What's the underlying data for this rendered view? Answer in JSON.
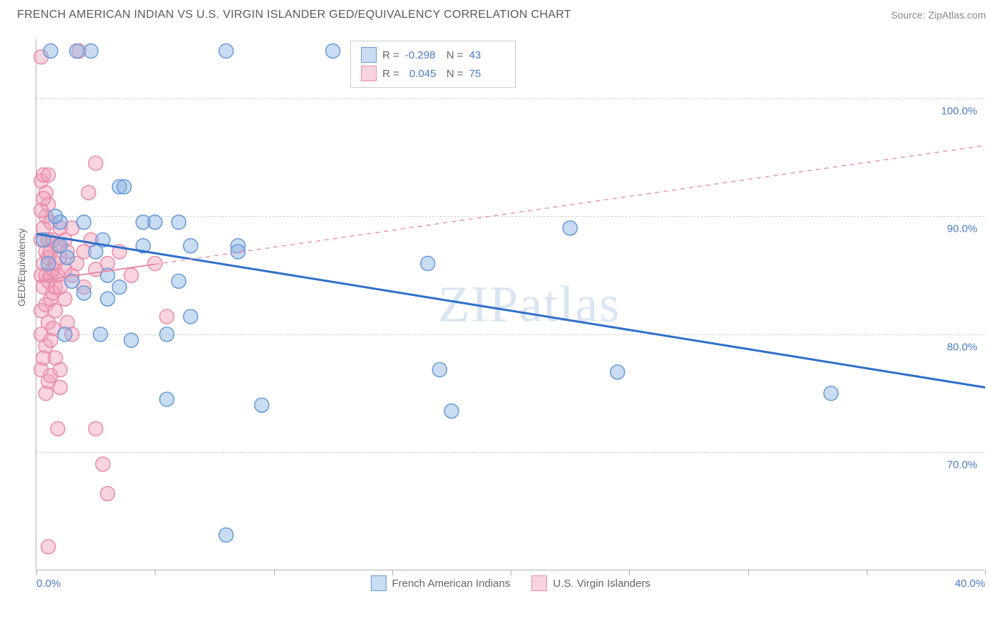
{
  "header": {
    "title": "FRENCH AMERICAN INDIAN VS U.S. VIRGIN ISLANDER GED/EQUIVALENCY CORRELATION CHART",
    "source": "Source: ZipAtlas.com"
  },
  "watermark": "ZIPatlas",
  "chart": {
    "type": "scatter",
    "y_label": "GED/Equivalency",
    "xlim": [
      0,
      40
    ],
    "ylim": [
      60,
      105
    ],
    "x_ticks": [
      0,
      5,
      10,
      15,
      20,
      25,
      30,
      35,
      40
    ],
    "x_tick_labels": {
      "0": "0.0%",
      "40": "40.0%"
    },
    "y_ticks": [
      70,
      80,
      90,
      100
    ],
    "y_tick_labels": [
      "70.0%",
      "80.0%",
      "90.0%",
      "100.0%"
    ],
    "grid_color": "#d0d0d0",
    "background_color": "#ffffff",
    "marker_radius": 10,
    "marker_stroke_width": 1.5,
    "series": [
      {
        "name": "French American Indians",
        "color_fill": "rgba(137, 178, 226, 0.45)",
        "color_stroke": "#6699d8",
        "R": "-0.298",
        "N": "43",
        "trend": {
          "x1": 0,
          "y1": 88.5,
          "x2": 40,
          "y2": 75.5,
          "solid_until_x": 40,
          "color": "#2f6fc9",
          "width": 3
        },
        "points": [
          [
            0.3,
            88
          ],
          [
            0.5,
            86
          ],
          [
            0.6,
            104
          ],
          [
            1.0,
            87.5
          ],
          [
            1.3,
            86.5
          ],
          [
            1.5,
            84.5
          ],
          [
            1.7,
            104
          ],
          [
            2.0,
            89.5
          ],
          [
            2.0,
            83.5
          ],
          [
            2.3,
            104
          ],
          [
            2.5,
            87
          ],
          [
            2.7,
            80
          ],
          [
            3.0,
            85
          ],
          [
            3.0,
            83
          ],
          [
            3.5,
            92.5
          ],
          [
            3.5,
            84
          ],
          [
            3.7,
            92.5
          ],
          [
            4.0,
            79.5
          ],
          [
            4.5,
            87.5
          ],
          [
            4.5,
            89.5
          ],
          [
            5.0,
            89.5
          ],
          [
            5.5,
            80
          ],
          [
            5.5,
            74.5
          ],
          [
            6.0,
            89.5
          ],
          [
            6.0,
            84.5
          ],
          [
            6.5,
            87.5
          ],
          [
            6.5,
            81.5
          ],
          [
            8.0,
            104
          ],
          [
            8.0,
            63
          ],
          [
            8.5,
            87.5
          ],
          [
            8.5,
            87
          ],
          [
            9.5,
            74
          ],
          [
            12.5,
            104
          ],
          [
            16.5,
            86
          ],
          [
            17.0,
            77
          ],
          [
            17.5,
            73.5
          ],
          [
            22.5,
            89
          ],
          [
            24.5,
            76.8
          ],
          [
            33.5,
            75
          ],
          [
            1.0,
            89.5
          ],
          [
            2.8,
            88
          ],
          [
            1.2,
            80
          ],
          [
            0.8,
            90
          ]
        ]
      },
      {
        "name": "U.S. Virgin Islanders",
        "color_fill": "rgba(240, 160, 185, 0.45)",
        "color_stroke": "#e88ca8",
        "R": "0.045",
        "N": "75",
        "trend": {
          "x1": 0,
          "y1": 84.5,
          "x2": 40,
          "y2": 96,
          "solid_until_x": 5,
          "color": "#e88ca8",
          "width": 2
        },
        "points": [
          [
            0.2,
            103.5
          ],
          [
            0.2,
            93
          ],
          [
            0.2,
            88
          ],
          [
            0.2,
            85
          ],
          [
            0.2,
            82
          ],
          [
            0.2,
            80
          ],
          [
            0.2,
            77
          ],
          [
            0.3,
            93.5
          ],
          [
            0.3,
            89
          ],
          [
            0.3,
            86
          ],
          [
            0.3,
            84
          ],
          [
            0.4,
            92
          ],
          [
            0.4,
            90
          ],
          [
            0.4,
            87
          ],
          [
            0.4,
            85
          ],
          [
            0.4,
            82.5
          ],
          [
            0.4,
            79
          ],
          [
            0.5,
            91
          ],
          [
            0.5,
            88
          ],
          [
            0.5,
            86.5
          ],
          [
            0.5,
            84.5
          ],
          [
            0.5,
            81
          ],
          [
            0.5,
            76
          ],
          [
            0.5,
            62
          ],
          [
            0.6,
            89.5
          ],
          [
            0.6,
            87
          ],
          [
            0.6,
            85
          ],
          [
            0.6,
            83
          ],
          [
            0.6,
            79.5
          ],
          [
            0.7,
            88
          ],
          [
            0.7,
            85.5
          ],
          [
            0.7,
            83.5
          ],
          [
            0.7,
            80.5
          ],
          [
            0.8,
            86
          ],
          [
            0.8,
            84
          ],
          [
            0.8,
            82
          ],
          [
            0.9,
            87.5
          ],
          [
            0.9,
            85
          ],
          [
            0.9,
            72
          ],
          [
            1.0,
            89
          ],
          [
            1.0,
            86.5
          ],
          [
            1.0,
            84
          ],
          [
            1.0,
            75.5
          ],
          [
            1.2,
            88
          ],
          [
            1.2,
            85.5
          ],
          [
            1.2,
            83
          ],
          [
            1.3,
            87
          ],
          [
            1.5,
            89
          ],
          [
            1.5,
            85
          ],
          [
            1.5,
            80
          ],
          [
            1.7,
            86
          ],
          [
            1.8,
            104
          ],
          [
            2.0,
            87
          ],
          [
            2.0,
            84
          ],
          [
            2.2,
            92
          ],
          [
            2.3,
            88
          ],
          [
            2.5,
            94.5
          ],
          [
            2.5,
            85.5
          ],
          [
            2.5,
            72
          ],
          [
            2.8,
            69
          ],
          [
            3.0,
            86
          ],
          [
            3.0,
            66.5
          ],
          [
            3.5,
            87
          ],
          [
            4.0,
            85
          ],
          [
            5.0,
            86
          ],
          [
            5.5,
            81.5
          ],
          [
            0.3,
            78
          ],
          [
            0.4,
            75
          ],
          [
            0.6,
            76.5
          ],
          [
            0.8,
            78
          ],
          [
            1.0,
            77
          ],
          [
            1.3,
            81
          ],
          [
            0.2,
            90.5
          ],
          [
            0.3,
            91.5
          ],
          [
            0.5,
            93.5
          ]
        ]
      }
    ],
    "legend_top": {
      "R_label": "R =",
      "N_label": "N ="
    },
    "legend_bottom_labels": [
      "French American Indians",
      "U.S. Virgin Islanders"
    ]
  }
}
